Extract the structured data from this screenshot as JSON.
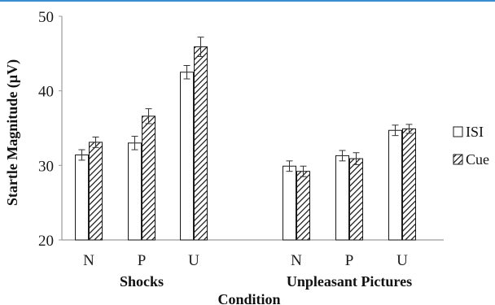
{
  "colors": {
    "accent_rule": "#3a8ed0",
    "axis": "#9a9a9a",
    "bar_stroke": "#1a1a1a",
    "text": "#111111"
  },
  "chart_data": {
    "type": "bar",
    "title": "",
    "ylabel": "Startle Magnitude (µV)",
    "xlabel": "Condition",
    "ylim": [
      20,
      50
    ],
    "yticks": [
      "20",
      "30",
      "40",
      "50"
    ],
    "grid": false,
    "legend_position": "right",
    "groups": [
      {
        "label": "Shocks",
        "categories": [
          "N",
          "P",
          "U"
        ]
      },
      {
        "label": "Unpleasant Pictures",
        "categories": [
          "N",
          "P",
          "U"
        ]
      }
    ],
    "series": [
      {
        "name": "ISI",
        "fill": "white",
        "values": [
          31.4,
          33.0,
          42.5,
          29.9,
          31.3,
          34.7
        ],
        "errors": [
          0.7,
          0.9,
          0.9,
          0.7,
          0.7,
          0.7
        ]
      },
      {
        "name": "Cue",
        "fill": "hatched",
        "values": [
          33.1,
          36.6,
          45.9,
          29.2,
          30.9,
          34.9
        ],
        "errors": [
          0.7,
          1.0,
          1.3,
          0.7,
          0.8,
          0.6
        ]
      }
    ]
  }
}
